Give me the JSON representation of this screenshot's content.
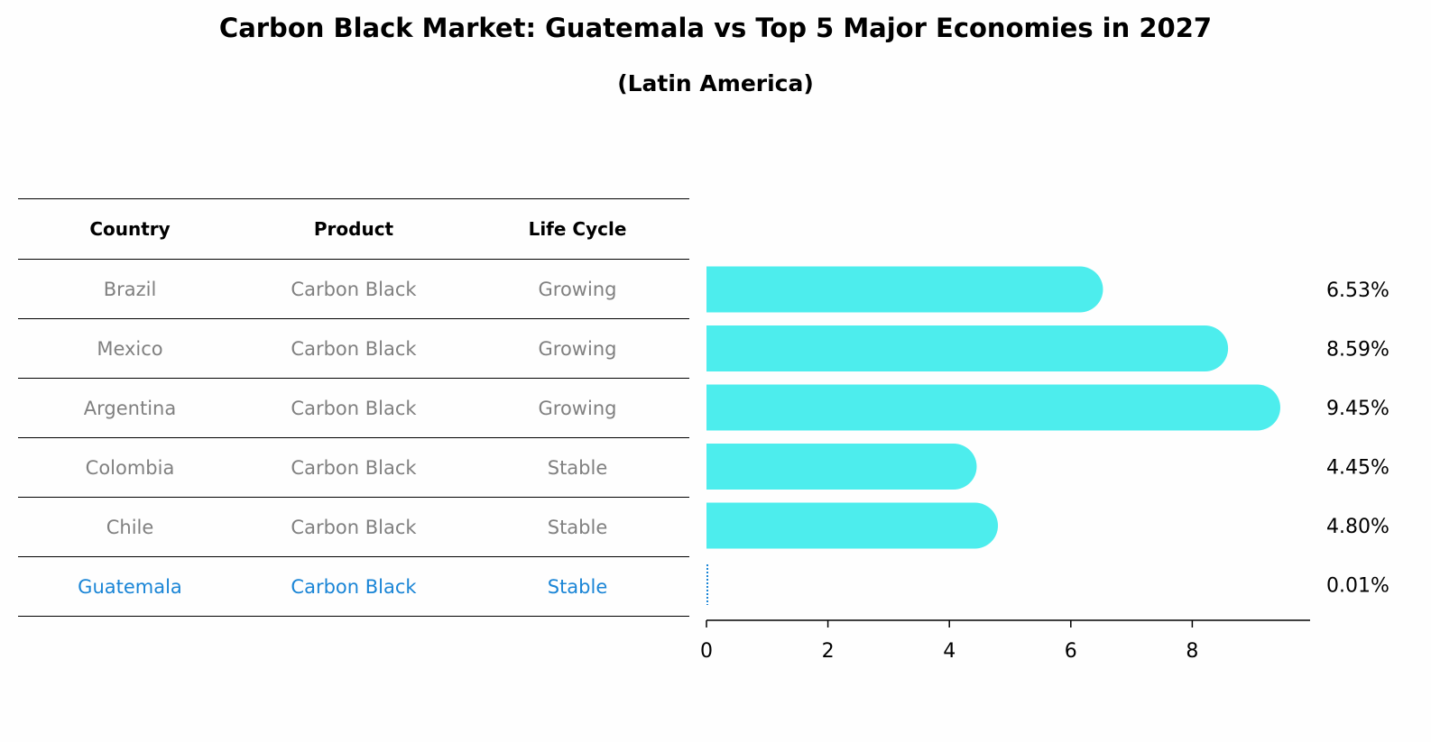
{
  "title": "Carbon Black Market: Guatemala vs Top 5 Major Economies in 2027",
  "subtitle": "(Latin America)",
  "table": {
    "headers": [
      "Country",
      "Product",
      "Life Cycle"
    ],
    "rows": [
      [
        "Brazil",
        "Carbon Black",
        "Growing"
      ],
      [
        "Mexico",
        "Carbon Black",
        "Growing"
      ],
      [
        "Argentina",
        "Carbon Black",
        "Growing"
      ],
      [
        "Colombia",
        "Carbon Black",
        "Stable"
      ],
      [
        "Chile",
        "Carbon Black",
        "Stable"
      ],
      [
        "Guatemala",
        "Carbon Black",
        "Stable"
      ]
    ],
    "highlight_row": 5
  },
  "colors": {
    "bar": "#4deded",
    "highlight": "#1a85d6",
    "muted_text": "#808080"
  },
  "chart_data": {
    "type": "bar",
    "orientation": "horizontal",
    "title": "Carbon Black Market: Guatemala vs Top 5 Major Economies in 2027",
    "subtitle": "(Latin America)",
    "categories": [
      "Brazil",
      "Mexico",
      "Argentina",
      "Colombia",
      "Chile",
      "Guatemala"
    ],
    "values": [
      6.53,
      8.59,
      9.45,
      4.45,
      4.8,
      0.01
    ],
    "labels": [
      "6.53%",
      "8.59%",
      "9.45%",
      "4.45%",
      "4.80%",
      "0.01%"
    ],
    "xlim": [
      0,
      9.95
    ],
    "xticks": [
      0,
      2,
      4,
      6,
      8
    ],
    "xlabel": "",
    "ylabel": "",
    "grid": false
  }
}
